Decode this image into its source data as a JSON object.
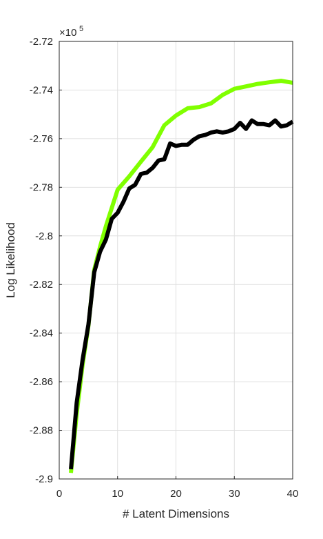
{
  "chart_data": {
    "type": "line",
    "xlabel": "# Latent Dimensions",
    "ylabel": "Log Likelihood",
    "y_multiplier": {
      "base": "×10",
      "exponent": "5"
    },
    "xlim": [
      0,
      40
    ],
    "ylim": [
      -2.9,
      -2.72
    ],
    "x_ticks": [
      0,
      10,
      20,
      30,
      40
    ],
    "x_tick_labels": [
      "0",
      "10",
      "20",
      "30",
      "40"
    ],
    "y_ticks": [
      -2.9,
      -2.88,
      -2.86,
      -2.84,
      -2.82,
      -2.8,
      -2.78,
      -2.76,
      -2.74,
      -2.72
    ],
    "y_tick_labels": [
      "-2.9",
      "-2.88",
      "-2.86",
      "-2.84",
      "-2.82",
      "-2.8",
      "-2.78",
      "-2.76",
      "-2.74",
      "-2.72"
    ],
    "grid": true,
    "series": [
      {
        "color": "#80ff00",
        "x": [
          2,
          3,
          4,
          5,
          6,
          7,
          8,
          10,
          12,
          14,
          16,
          18,
          20,
          22,
          24,
          26,
          28,
          30,
          32,
          34,
          36,
          38,
          40
        ],
        "y": [
          -2.8975,
          -2.873,
          -2.853,
          -2.837,
          -2.814,
          -2.8045,
          -2.796,
          -2.781,
          -2.7755,
          -2.7695,
          -2.7635,
          -2.7545,
          -2.7505,
          -2.7475,
          -2.747,
          -2.7455,
          -2.742,
          -2.7395,
          -2.7385,
          -2.7375,
          -2.7368,
          -2.7362,
          -2.737
        ]
      },
      {
        "color": "#000000",
        "x": [
          2,
          3,
          4,
          5,
          6,
          7,
          8,
          9,
          10,
          11,
          12,
          13,
          14,
          15,
          16,
          17,
          18,
          19,
          20,
          21,
          22,
          23,
          24,
          25,
          26,
          27,
          28,
          29,
          30,
          31,
          32,
          33,
          34,
          35,
          36,
          37,
          38,
          39,
          40
        ],
        "y": [
          -2.896,
          -2.8685,
          -2.851,
          -2.8365,
          -2.815,
          -2.8065,
          -2.8015,
          -2.793,
          -2.7905,
          -2.786,
          -2.7805,
          -2.779,
          -2.7745,
          -2.774,
          -2.772,
          -2.769,
          -2.7685,
          -2.762,
          -2.763,
          -2.7625,
          -2.7625,
          -2.7605,
          -2.759,
          -2.7585,
          -2.7575,
          -2.757,
          -2.7575,
          -2.757,
          -2.756,
          -2.7535,
          -2.756,
          -2.7525,
          -2.754,
          -2.754,
          -2.7545,
          -2.7525,
          -2.755,
          -2.7545,
          -2.753
        ]
      }
    ]
  }
}
